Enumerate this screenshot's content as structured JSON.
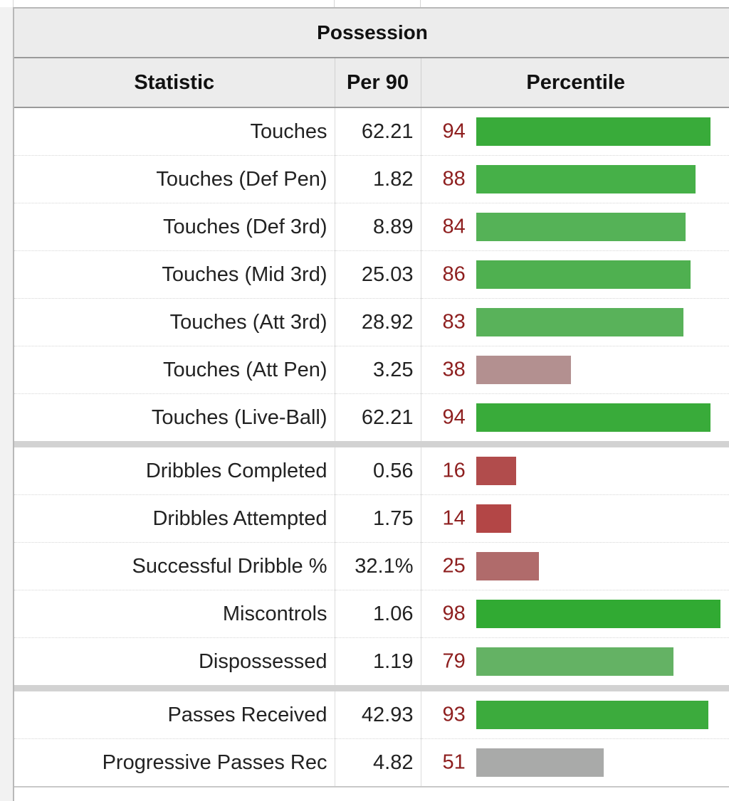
{
  "table": {
    "title": "Possession",
    "headers": [
      "Statistic",
      "Per 90",
      "Percentile"
    ]
  },
  "chart_data": {
    "type": "bar",
    "title": "Possession",
    "xlabel": "Percentile",
    "ylabel": "Statistic",
    "xlim": [
      0,
      100
    ],
    "groups": [
      [
        {
          "stat": "Touches",
          "per90": "62.21",
          "percentile": 94,
          "color": "#39ab3a"
        },
        {
          "stat": "Touches (Def Pen)",
          "per90": "1.82",
          "percentile": 88,
          "color": "#46b048"
        },
        {
          "stat": "Touches (Def 3rd)",
          "per90": "8.89",
          "percentile": 84,
          "color": "#55b257"
        },
        {
          "stat": "Touches (Mid 3rd)",
          "per90": "25.03",
          "percentile": 86,
          "color": "#4fb050"
        },
        {
          "stat": "Touches (Att 3rd)",
          "per90": "28.92",
          "percentile": 83,
          "color": "#59b25a"
        },
        {
          "stat": "Touches (Att Pen)",
          "per90": "3.25",
          "percentile": 38,
          "color": "#b39090"
        },
        {
          "stat": "Touches (Live-Ball)",
          "per90": "62.21",
          "percentile": 94,
          "color": "#39ab3a"
        }
      ],
      [
        {
          "stat": "Dribbles Completed",
          "per90": "0.56",
          "percentile": 16,
          "color": "#b14c4c"
        },
        {
          "stat": "Dribbles Attempted",
          "per90": "1.75",
          "percentile": 14,
          "color": "#b34646"
        },
        {
          "stat": "Successful Dribble %",
          "per90": "32.1%",
          "percentile": 25,
          "color": "#b06b6b"
        },
        {
          "stat": "Miscontrols",
          "per90": "1.06",
          "percentile": 98,
          "color": "#31aa33"
        },
        {
          "stat": "Dispossessed",
          "per90": "1.19",
          "percentile": 79,
          "color": "#64b264"
        }
      ],
      [
        {
          "stat": "Passes Received",
          "per90": "42.93",
          "percentile": 93,
          "color": "#3cab3d"
        },
        {
          "stat": "Progressive Passes Rec",
          "per90": "4.82",
          "percentile": 51,
          "color": "#a9aaa9"
        }
      ]
    ]
  }
}
